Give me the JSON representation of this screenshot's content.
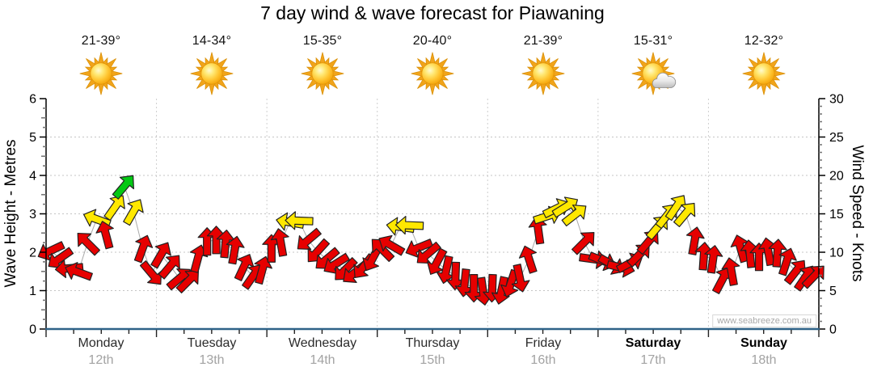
{
  "title": "7 day wind & wave forecast for Piawaning",
  "watermark": "www.seabreeze.com.au",
  "days": [
    {
      "label": "Monday",
      "date": "12th",
      "temp": "21-39°",
      "icon": "sunny",
      "bold": false
    },
    {
      "label": "Tuesday",
      "date": "13th",
      "temp": "14-34°",
      "icon": "sunny",
      "bold": false
    },
    {
      "label": "Wednesday",
      "date": "14th",
      "temp": "15-35°",
      "icon": "sunny",
      "bold": false
    },
    {
      "label": "Thursday",
      "date": "15th",
      "temp": "20-40°",
      "icon": "sunny",
      "bold": false
    },
    {
      "label": "Friday",
      "date": "16th",
      "temp": "21-39°",
      "icon": "sunny",
      "bold": false
    },
    {
      "label": "Saturday",
      "date": "17th",
      "temp": "15-31°",
      "icon": "partly-cloudy",
      "bold": true
    },
    {
      "label": "Sunday",
      "date": "18th",
      "temp": "12-32°",
      "icon": "sunny",
      "bold": true
    }
  ],
  "chart_data": {
    "type": "scatter",
    "title": "7 day wind & wave forecast for Piawaning",
    "categories": [
      "Monday 12th",
      "Tuesday 13th",
      "Wednesday 14th",
      "Thursday 15th",
      "Friday 16th",
      "Saturday 17th",
      "Sunday 18th"
    ],
    "left_axis": {
      "label": "Wave Height - Metres",
      "min": 0,
      "max": 6,
      "major_step": 1,
      "minor_step": 0.25
    },
    "right_axis": {
      "label": "Wind Speed - Knots",
      "min": 0,
      "max": 30,
      "major_step": 5,
      "minor_step": 1
    },
    "grid": {
      "horizontal_metres": [
        1,
        2,
        3,
        4,
        5
      ],
      "vertical_day_boundaries": true
    },
    "colors": {
      "red": "#e60000",
      "yellow": "#ffe800",
      "green": "#04c814",
      "axis_bottom": "#2e6288",
      "grid": "#c4c4c4",
      "connector": "#aaaaaa"
    },
    "color_thresholds_knots": {
      "yellow_min": 13,
      "green_min": 17.5
    },
    "point_format": [
      "day_index",
      "hour",
      "knots",
      "screen_direction_deg_clockwise_from_up"
    ],
    "arrows": [
      [
        0,
        0,
        10.2,
        245
      ],
      [
        0,
        2,
        9.2,
        235
      ],
      [
        0,
        4,
        7.9,
        265
      ],
      [
        0,
        6,
        7.4,
        290
      ],
      [
        0,
        8,
        11.2,
        315
      ],
      [
        0,
        10,
        14.3,
        290
      ],
      [
        0,
        12,
        12.3,
        345
      ],
      [
        0,
        14,
        15.9,
        35
      ],
      [
        0,
        16,
        18.6,
        40
      ],
      [
        0,
        18,
        15.3,
        30
      ],
      [
        0,
        20,
        10.5,
        20
      ],
      [
        0,
        22,
        7.2,
        140
      ],
      [
        1,
        0,
        9.7,
        30
      ],
      [
        1,
        2,
        8.2,
        40
      ],
      [
        1,
        4,
        6.6,
        50
      ],
      [
        1,
        6,
        6.3,
        45
      ],
      [
        1,
        8,
        9.2,
        15
      ],
      [
        1,
        10,
        11.4,
        0
      ],
      [
        1,
        12,
        11.6,
        0
      ],
      [
        1,
        14,
        11.1,
        5
      ],
      [
        1,
        16,
        10.3,
        10
      ],
      [
        1,
        18,
        8.1,
        25
      ],
      [
        1,
        20,
        6.9,
        35
      ],
      [
        1,
        22,
        7.7,
        15
      ],
      [
        2,
        0,
        10.5,
        0
      ],
      [
        2,
        2,
        11.3,
        350
      ],
      [
        2,
        4,
        13.9,
        280
      ],
      [
        2,
        6,
        14.1,
        272
      ],
      [
        2,
        8,
        11.6,
        230
      ],
      [
        2,
        10,
        10.1,
        222
      ],
      [
        2,
        12,
        9.1,
        230
      ],
      [
        2,
        14,
        8.5,
        238
      ],
      [
        2,
        16,
        7.7,
        225
      ],
      [
        2,
        18,
        7.3,
        232
      ],
      [
        2,
        20,
        8.1,
        218
      ],
      [
        2,
        22,
        9.2,
        208
      ],
      [
        3,
        0,
        10.4,
        315
      ],
      [
        3,
        2,
        10.9,
        300
      ],
      [
        3,
        4,
        13.3,
        278
      ],
      [
        3,
        6,
        13.5,
        272
      ],
      [
        3,
        8,
        10.6,
        248
      ],
      [
        3,
        10,
        9.8,
        230
      ],
      [
        3,
        12,
        8.7,
        208
      ],
      [
        3,
        14,
        7.7,
        192
      ],
      [
        3,
        16,
        6.9,
        182
      ],
      [
        3,
        18,
        6.0,
        186
      ],
      [
        3,
        20,
        5.3,
        180
      ],
      [
        3,
        22,
        4.9,
        172
      ],
      [
        4,
        0,
        5.3,
        182
      ],
      [
        4,
        2,
        5.0,
        192
      ],
      [
        4,
        4,
        5.9,
        198
      ],
      [
        4,
        6,
        6.6,
        168
      ],
      [
        4,
        8,
        9.1,
        342
      ],
      [
        4,
        10,
        12.9,
        352
      ],
      [
        4,
        12,
        14.7,
        72
      ],
      [
        4,
        14,
        15.7,
        64
      ],
      [
        4,
        16,
        15.9,
        58
      ],
      [
        4,
        18,
        14.9,
        52
      ],
      [
        4,
        20,
        11.3,
        45
      ],
      [
        4,
        22,
        9.1,
        98
      ],
      [
        5,
        0,
        8.9,
        112
      ],
      [
        5,
        2,
        8.4,
        120
      ],
      [
        5,
        4,
        8.0,
        104
      ],
      [
        5,
        6,
        8.6,
        62
      ],
      [
        5,
        8,
        9.7,
        45
      ],
      [
        5,
        10,
        11.4,
        40
      ],
      [
        5,
        12,
        13.3,
        40
      ],
      [
        5,
        14,
        14.8,
        38
      ],
      [
        5,
        16,
        15.9,
        34
      ],
      [
        5,
        18,
        15.0,
        40
      ],
      [
        5,
        20,
        11.5,
        10
      ],
      [
        5,
        22,
        9.5,
        4
      ],
      [
        6,
        0,
        9.1,
        8
      ],
      [
        6,
        2,
        6.4,
        28
      ],
      [
        6,
        4,
        7.5,
        350
      ],
      [
        6,
        6,
        10.5,
        344
      ],
      [
        6,
        8,
        9.8,
        354
      ],
      [
        6,
        10,
        9.4,
        0
      ],
      [
        6,
        12,
        10.1,
        350
      ],
      [
        6,
        14,
        9.9,
        4
      ],
      [
        6,
        16,
        8.8,
        18
      ],
      [
        6,
        18,
        7.5,
        38
      ],
      [
        6,
        20,
        6.7,
        34
      ],
      [
        6,
        22,
        6.9,
        44
      ]
    ]
  }
}
